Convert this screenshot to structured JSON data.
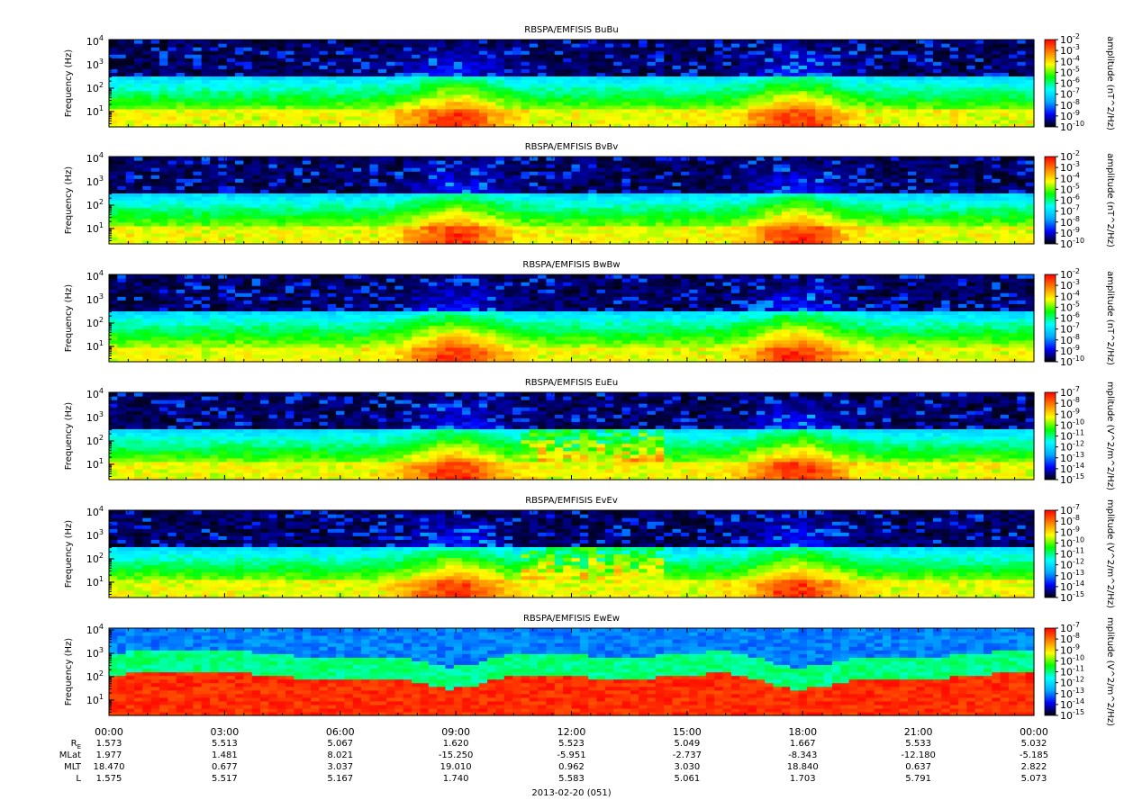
{
  "chart_data": [
    {
      "type": "heatmap",
      "title": "RBSPA/EMFISIS  BuBu",
      "ylabel": "Frequency (Hz)",
      "y_scale": "log",
      "ylim": [
        2.2,
        12000
      ],
      "y_ticks": [
        {
          "exp": "1"
        },
        {
          "exp": "2"
        },
        {
          "exp": "3"
        },
        {
          "exp": "4"
        }
      ],
      "colorbar": {
        "label": "amplitude (nT^2/Hz)",
        "scale": "log",
        "range": [
          1e-10,
          0.01
        ],
        "ticks": [
          "-2",
          "-3",
          "-4",
          "-5",
          "-6",
          "-7",
          "-8",
          "-9",
          "-10"
        ]
      },
      "noise_floor_level": 0.18,
      "color_stops": [
        "#000000",
        "#0000ff",
        "#00aaff",
        "#00ffff",
        "#00ff00",
        "#ffff00",
        "#ff7f00",
        "#ff0000"
      ]
    },
    {
      "type": "heatmap",
      "title": "RBSPA/EMFISIS  BvBv",
      "ylabel": "Frequency (Hz)",
      "y_scale": "log",
      "ylim": [
        2.2,
        12000
      ],
      "y_ticks": [
        {
          "exp": "1"
        },
        {
          "exp": "2"
        },
        {
          "exp": "3"
        },
        {
          "exp": "4"
        }
      ],
      "colorbar": {
        "label": "amplitude (nT^2/Hz)",
        "scale": "log",
        "range": [
          1e-10,
          0.01
        ],
        "ticks": [
          "-2",
          "-3",
          "-4",
          "-5",
          "-6",
          "-7",
          "-8",
          "-9",
          "-10"
        ]
      },
      "noise_floor_level": 0.18,
      "color_stops": [
        "#000000",
        "#0000ff",
        "#00aaff",
        "#00ffff",
        "#00ff00",
        "#ffff00",
        "#ff7f00",
        "#ff0000"
      ]
    },
    {
      "type": "heatmap",
      "title": "RBSPA/EMFISIS  BwBw",
      "ylabel": "Frequency (Hz)",
      "y_scale": "log",
      "ylim": [
        2.2,
        12000
      ],
      "y_ticks": [
        {
          "exp": "1"
        },
        {
          "exp": "2"
        },
        {
          "exp": "3"
        },
        {
          "exp": "4"
        }
      ],
      "colorbar": {
        "label": "amplitude (nT^2/Hz)",
        "scale": "log",
        "range": [
          1e-10,
          0.01
        ],
        "ticks": [
          "-2",
          "-3",
          "-4",
          "-5",
          "-6",
          "-7",
          "-8",
          "-9",
          "-10"
        ]
      },
      "noise_floor_level": 0.15,
      "color_stops": [
        "#000000",
        "#0000ff",
        "#00aaff",
        "#00ffff",
        "#00ff00",
        "#ffff00",
        "#ff7f00",
        "#ff0000"
      ]
    },
    {
      "type": "heatmap",
      "title": "RBSPA/EMFISIS  EuEu",
      "ylabel": "Frequency (Hz)",
      "y_scale": "log",
      "ylim": [
        2.2,
        12000
      ],
      "y_ticks": [
        {
          "exp": "1"
        },
        {
          "exp": "2"
        },
        {
          "exp": "3"
        },
        {
          "exp": "4"
        }
      ],
      "colorbar": {
        "label": "mplitude (V^2/m^2/Hz)",
        "scale": "log",
        "range": [
          1e-15,
          1e-07
        ],
        "ticks": [
          "-7",
          "-8",
          "-9",
          "-10",
          "-11",
          "-12",
          "-13",
          "-14",
          "-15"
        ]
      },
      "noise_floor_level": 0.2,
      "color_stops": [
        "#000000",
        "#0000ff",
        "#00aaff",
        "#00ffff",
        "#00ff00",
        "#ffff00",
        "#ff7f00",
        "#ff0000"
      ]
    },
    {
      "type": "heatmap",
      "title": "RBSPA/EMFISIS  EvEv",
      "ylabel": "Frequency (Hz)",
      "y_scale": "log",
      "ylim": [
        2.2,
        12000
      ],
      "y_ticks": [
        {
          "exp": "1"
        },
        {
          "exp": "2"
        },
        {
          "exp": "3"
        },
        {
          "exp": "4"
        }
      ],
      "colorbar": {
        "label": "mplitude (V^2/m^2/Hz)",
        "scale": "log",
        "range": [
          1e-15,
          1e-07
        ],
        "ticks": [
          "-7",
          "-8",
          "-9",
          "-10",
          "-11",
          "-12",
          "-13",
          "-14",
          "-15"
        ]
      },
      "noise_floor_level": 0.2,
      "color_stops": [
        "#000000",
        "#0000ff",
        "#00aaff",
        "#00ffff",
        "#00ff00",
        "#ffff00",
        "#ff7f00",
        "#ff0000"
      ]
    },
    {
      "type": "heatmap",
      "title": "RBSPA/EMFISIS  EwEw",
      "ylabel": "Frequency (Hz)",
      "y_scale": "log",
      "ylim": [
        2.2,
        12000
      ],
      "y_ticks": [
        {
          "exp": "1"
        },
        {
          "exp": "2"
        },
        {
          "exp": "3"
        },
        {
          "exp": "4"
        }
      ],
      "colorbar": {
        "label": "mplitude (V^2/m^2/Hz)",
        "scale": "log",
        "range": [
          1e-15,
          1e-07
        ],
        "ticks": [
          "-7",
          "-8",
          "-9",
          "-10",
          "-11",
          "-12",
          "-13",
          "-14",
          "-15"
        ]
      },
      "noise_floor_level": 0.45,
      "color_stops": [
        "#000000",
        "#0000ff",
        "#00aaff",
        "#00ffff",
        "#00ff00",
        "#ffff00",
        "#ff7f00",
        "#ff0000"
      ]
    }
  ],
  "time_axis": {
    "ticks": [
      "00:00",
      "03:00",
      "06:00",
      "09:00",
      "12:00",
      "15:00",
      "18:00",
      "21:00",
      "00:00"
    ],
    "minor_per_major": 6,
    "date_label": "2013-02-20 (051)"
  },
  "ephemeris": [
    {
      "label_main": "R",
      "label_sub": "E",
      "values": [
        "1.573",
        "5.513",
        "5.067",
        "1.620",
        "5.523",
        "5.049",
        "1.667",
        "5.533",
        "5.032"
      ]
    },
    {
      "label_main": "MLat",
      "label_sub": "",
      "values": [
        "1.977",
        "1.481",
        "8.021",
        "-15.250",
        "-5.951",
        "-2.737",
        "-8.343",
        "-12.180",
        "-5.185"
      ]
    },
    {
      "label_main": "MLT",
      "label_sub": "",
      "values": [
        "18.470",
        "0.677",
        "3.037",
        "19.010",
        "0.962",
        "3.030",
        "18.840",
        "0.637",
        "2.822"
      ]
    },
    {
      "label_main": "L",
      "label_sub": "",
      "values": [
        "1.575",
        "5.517",
        "5.167",
        "1.740",
        "5.583",
        "5.061",
        "1.703",
        "5.791",
        "5.073"
      ]
    }
  ]
}
